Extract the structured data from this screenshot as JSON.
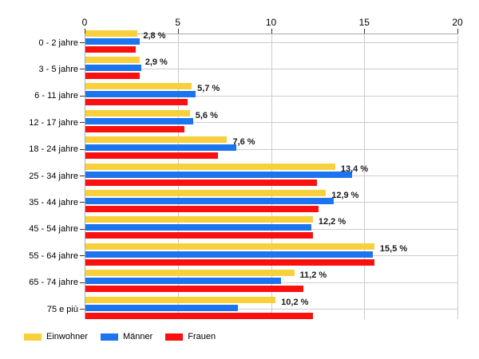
{
  "chart_data": {
    "type": "bar",
    "orientation": "horizontal",
    "title": "",
    "categories": [
      "0 - 2 jahre",
      "3 - 5 jahre",
      "6 - 11 jahre",
      "12 - 17 jahre",
      "18 - 24 jahre",
      "25 - 34 jahre",
      "35 - 44 jahre",
      "45 - 54 jahre",
      "55 - 64 jahre",
      "65 - 74 jahre",
      "75 e più"
    ],
    "series": [
      {
        "name": "Einwohner",
        "color": "#F8D03C",
        "values": [
          2.8,
          2.9,
          5.7,
          5.6,
          7.6,
          13.4,
          12.9,
          12.2,
          15.5,
          11.2,
          10.2
        ]
      },
      {
        "name": "Männer",
        "color": "#1C75EE",
        "values": [
          2.9,
          3.0,
          5.9,
          5.8,
          8.1,
          14.3,
          13.3,
          12.1,
          15.4,
          10.5,
          8.2
        ]
      },
      {
        "name": "Frauen",
        "color": "#FA100E",
        "values": [
          2.7,
          2.9,
          5.5,
          5.3,
          7.1,
          12.4,
          12.5,
          12.2,
          15.5,
          11.7,
          12.2
        ]
      }
    ],
    "value_labels": [
      "2,8 %",
      "2,9 %",
      "5,7 %",
      "5,6 %",
      "7,6 %",
      "13,4 %",
      "12,9 %",
      "12,2 %",
      "15,5 %",
      "11,2 %",
      "10,2 %"
    ],
    "value_labels_series": "Einwohner",
    "xlim": [
      0,
      20
    ],
    "x_ticks": [
      "0",
      "5",
      "10",
      "15",
      "20"
    ],
    "grid": true,
    "legend_position": "bottom",
    "colors": {
      "axis_line": "#aaaaaa",
      "gridline": "#cccccc",
      "tick_mark": "#333333",
      "tick_label": "#000000",
      "category_label": "#000000",
      "value_label": "#1a1a1a",
      "background": "#ffffff"
    }
  }
}
